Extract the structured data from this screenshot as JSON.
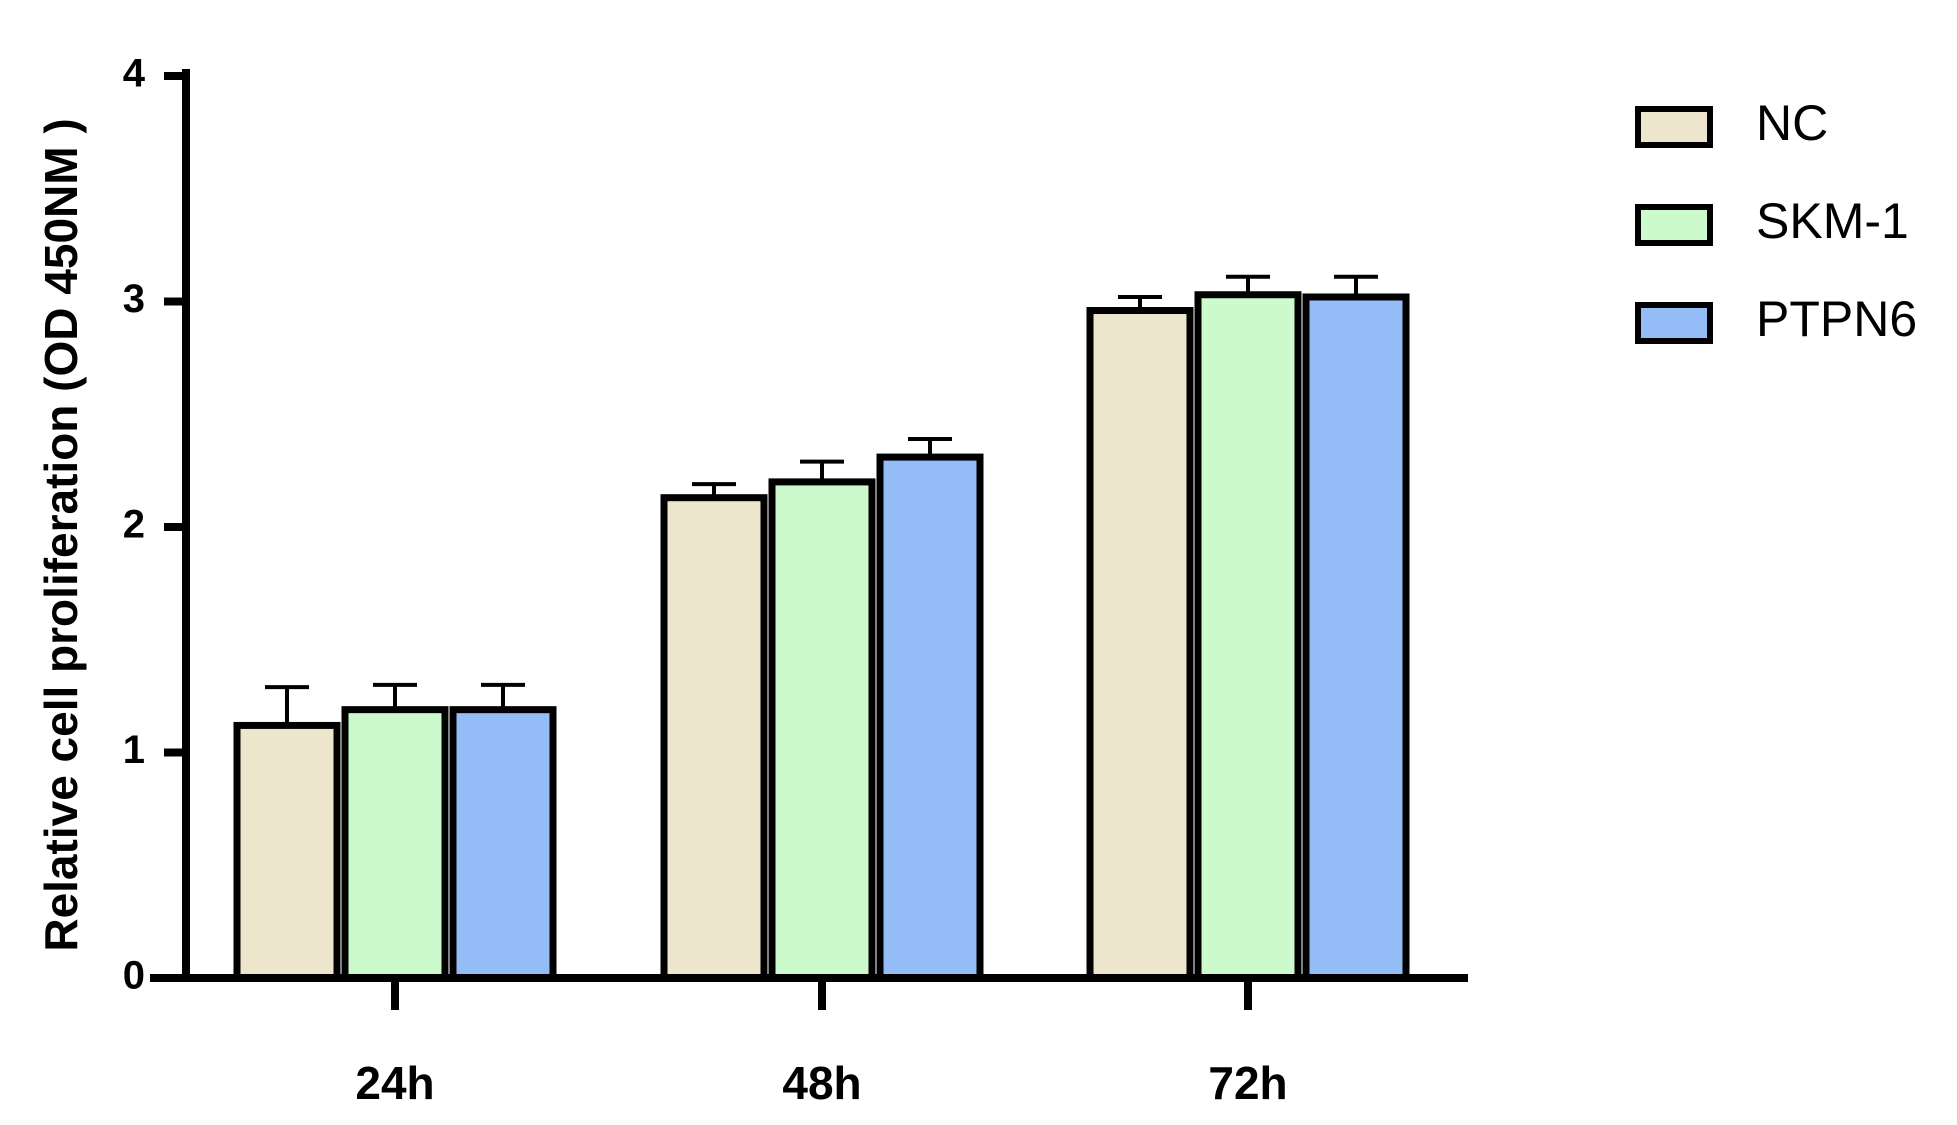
{
  "chart_data": {
    "type": "bar",
    "categories": [
      "24h",
      "48h",
      "72h"
    ],
    "series": [
      {
        "name": "NC",
        "values": [
          1.12,
          2.13,
          2.96
        ],
        "errors": [
          0.17,
          0.06,
          0.06
        ],
        "color": "#ede5cc"
      },
      {
        "name": "SKM-1",
        "values": [
          1.19,
          2.2,
          3.03
        ],
        "errors": [
          0.11,
          0.09,
          0.08
        ],
        "color": "#ccfacc"
      },
      {
        "name": "PTPN6",
        "values": [
          1.19,
          2.31,
          3.02
        ],
        "errors": [
          0.11,
          0.08,
          0.09
        ],
        "color": "#94bdf7"
      }
    ],
    "xlabel": "",
    "ylabel": "Relative cell proliferation (OD 450NM )",
    "ylim": [
      0,
      4
    ],
    "yticks": [
      "0",
      "1",
      "2",
      "3",
      "4"
    ],
    "grid": false,
    "legend_position": "top-right"
  }
}
